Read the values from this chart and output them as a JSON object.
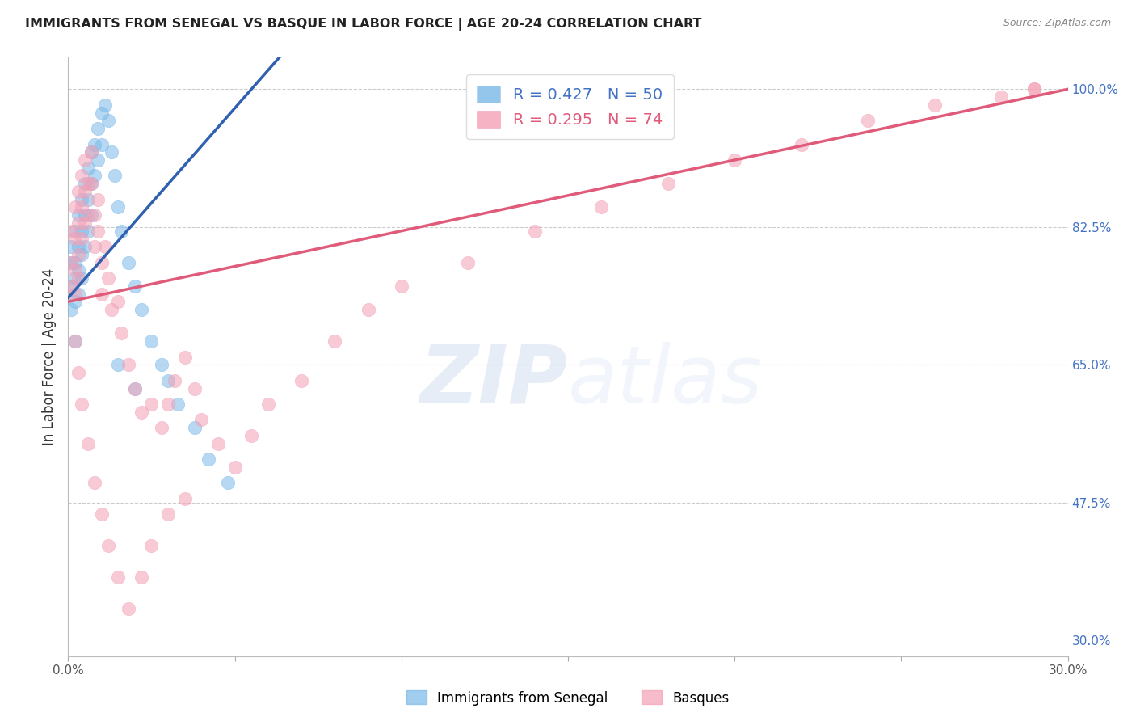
{
  "title": "IMMIGRANTS FROM SENEGAL VS BASQUE IN LABOR FORCE | AGE 20-24 CORRELATION CHART",
  "source": "Source: ZipAtlas.com",
  "ylabel": "In Labor Force | Age 20-24",
  "xlim": [
    0.0,
    0.3
  ],
  "ylim": [
    0.28,
    1.04
  ],
  "yticks_right": [
    1.0,
    0.825,
    0.65,
    0.475,
    0.3
  ],
  "ytick_labels_right": [
    "100.0%",
    "82.5%",
    "65.0%",
    "47.5%",
    "30.0%"
  ],
  "hlines": [
    1.0,
    0.825,
    0.65,
    0.475
  ],
  "blue_color": "#7ab8e8",
  "pink_color": "#f4a0b5",
  "blue_line_color": "#3060b0",
  "pink_line_color": "#e05a7a",
  "legend_blue_label": "R = 0.427   N = 50",
  "legend_pink_label": "R = 0.295   N = 74",
  "legend_blue_color": "#7ab8e8",
  "legend_pink_color": "#f4a0b5",
  "bottom_legend_blue": "Immigrants from Senegal",
  "bottom_legend_pink": "Basques",
  "watermark_zip": "ZIP",
  "watermark_atlas": "atlas",
  "background_color": "#ffffff",
  "title_color": "#222222",
  "axis_label_color": "#333333",
  "right_tick_color": "#4472c4",
  "grid_color": "#cccccc",
  "blue_line_x0": 0.0,
  "blue_line_y0": 0.735,
  "blue_line_x1": 0.055,
  "blue_line_y1": 1.0,
  "pink_line_x0": 0.0,
  "pink_line_y0": 0.73,
  "pink_line_x1": 0.3,
  "pink_line_y1": 1.0,
  "blue_pts_x": [
    0.001,
    0.001,
    0.001,
    0.002,
    0.002,
    0.002,
    0.002,
    0.003,
    0.003,
    0.003,
    0.003,
    0.004,
    0.004,
    0.004,
    0.004,
    0.005,
    0.005,
    0.005,
    0.006,
    0.006,
    0.006,
    0.007,
    0.007,
    0.007,
    0.008,
    0.008,
    0.009,
    0.009,
    0.01,
    0.01,
    0.011,
    0.012,
    0.013,
    0.014,
    0.015,
    0.016,
    0.018,
    0.02,
    0.022,
    0.025,
    0.028,
    0.03,
    0.033,
    0.038,
    0.042,
    0.048,
    0.001,
    0.002,
    0.015,
    0.02
  ],
  "blue_pts_y": [
    0.78,
    0.8,
    0.75,
    0.82,
    0.78,
    0.76,
    0.73,
    0.84,
    0.8,
    0.77,
    0.74,
    0.86,
    0.82,
    0.79,
    0.76,
    0.88,
    0.84,
    0.8,
    0.9,
    0.86,
    0.82,
    0.92,
    0.88,
    0.84,
    0.93,
    0.89,
    0.95,
    0.91,
    0.97,
    0.93,
    0.98,
    0.96,
    0.92,
    0.89,
    0.85,
    0.82,
    0.78,
    0.75,
    0.72,
    0.68,
    0.65,
    0.63,
    0.6,
    0.57,
    0.53,
    0.5,
    0.72,
    0.68,
    0.65,
    0.62
  ],
  "pink_pts_x": [
    0.001,
    0.001,
    0.001,
    0.002,
    0.002,
    0.002,
    0.002,
    0.003,
    0.003,
    0.003,
    0.003,
    0.004,
    0.004,
    0.004,
    0.005,
    0.005,
    0.005,
    0.006,
    0.006,
    0.007,
    0.007,
    0.008,
    0.008,
    0.009,
    0.009,
    0.01,
    0.01,
    0.011,
    0.012,
    0.013,
    0.015,
    0.016,
    0.018,
    0.02,
    0.022,
    0.025,
    0.028,
    0.03,
    0.032,
    0.035,
    0.038,
    0.04,
    0.045,
    0.05,
    0.055,
    0.06,
    0.07,
    0.08,
    0.09,
    0.1,
    0.12,
    0.14,
    0.16,
    0.18,
    0.2,
    0.22,
    0.24,
    0.26,
    0.28,
    0.29,
    0.002,
    0.003,
    0.004,
    0.006,
    0.008,
    0.01,
    0.012,
    0.015,
    0.018,
    0.022,
    0.025,
    0.03,
    0.035,
    0.29
  ],
  "pink_pts_y": [
    0.82,
    0.78,
    0.75,
    0.85,
    0.81,
    0.77,
    0.74,
    0.87,
    0.83,
    0.79,
    0.76,
    0.89,
    0.85,
    0.81,
    0.91,
    0.87,
    0.83,
    0.88,
    0.84,
    0.92,
    0.88,
    0.84,
    0.8,
    0.86,
    0.82,
    0.78,
    0.74,
    0.8,
    0.76,
    0.72,
    0.73,
    0.69,
    0.65,
    0.62,
    0.59,
    0.6,
    0.57,
    0.6,
    0.63,
    0.66,
    0.62,
    0.58,
    0.55,
    0.52,
    0.56,
    0.6,
    0.63,
    0.68,
    0.72,
    0.75,
    0.78,
    0.82,
    0.85,
    0.88,
    0.91,
    0.93,
    0.96,
    0.98,
    0.99,
    1.0,
    0.68,
    0.64,
    0.6,
    0.55,
    0.5,
    0.46,
    0.42,
    0.38,
    0.34,
    0.38,
    0.42,
    0.46,
    0.48,
    1.0
  ]
}
